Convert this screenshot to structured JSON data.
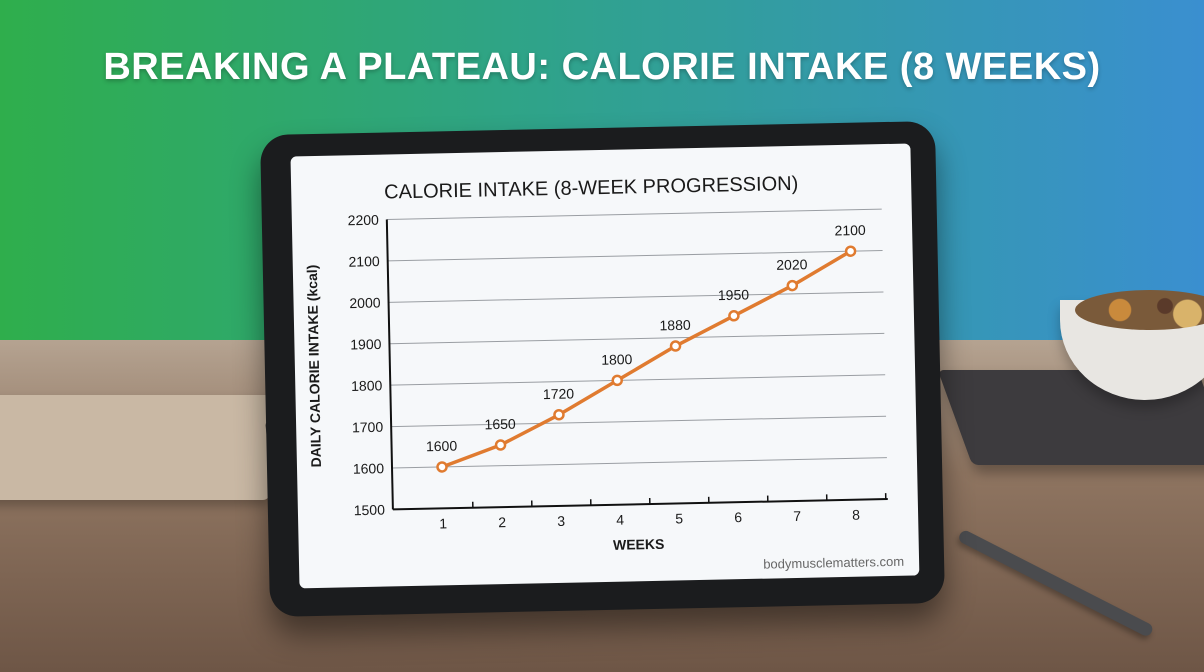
{
  "headline": "BREAKING A PLATEAU: CALORIE INTAKE (8 WEEKS)",
  "watermark": "bodymusclematters.com",
  "colors": {
    "line": "#e07b30",
    "background_left": "#2fae4c",
    "background_right": "#3a8fd0"
  },
  "chart_data": {
    "type": "line",
    "title": "CALORIE INTAKE (8-WEEK PROGRESSION)",
    "xlabel": "WEEKS",
    "ylabel": "DAILY CALORIE INTAKE (kcal)",
    "x": [
      1,
      2,
      3,
      4,
      5,
      6,
      7,
      8
    ],
    "x_ticks": [
      "1",
      "2",
      "3",
      "4",
      "5",
      "6",
      "7",
      "8"
    ],
    "values": [
      1600,
      1650,
      1720,
      1800,
      1880,
      1950,
      2020,
      2100
    ],
    "data_labels": [
      "1600",
      "1650",
      "1720",
      "1800",
      "1880",
      "1950",
      "2020",
      "2100"
    ],
    "y_ticks": [
      "1500",
      "1600",
      "1700",
      "1800",
      "1900",
      "2000",
      "2100",
      "2200"
    ],
    "ylim": [
      1500,
      2200
    ],
    "grid": true,
    "markers": "hollow-circle"
  }
}
